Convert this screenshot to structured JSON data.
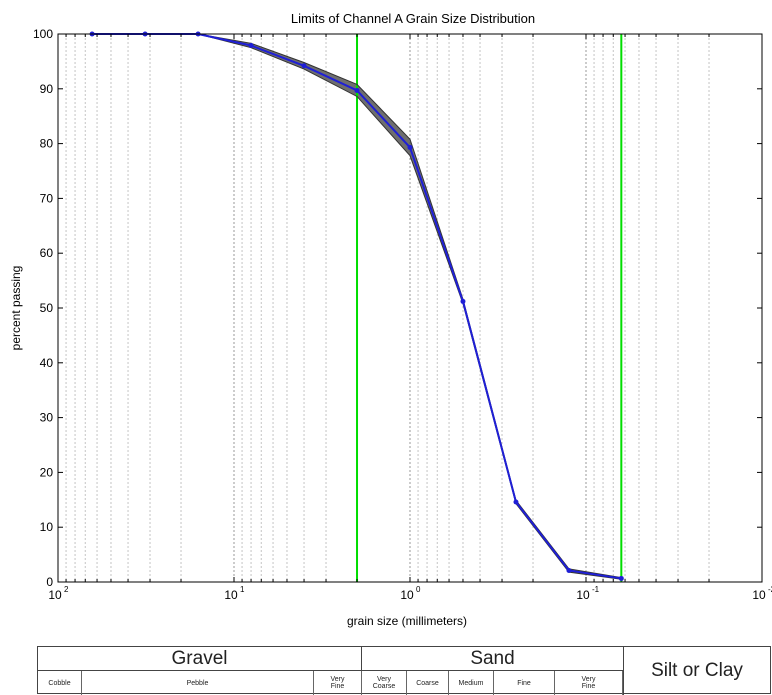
{
  "chart_data": {
    "type": "line",
    "title": "Limits of Channel A Grain Size Distribution",
    "xlabel": "grain size (millimeters)",
    "ylabel": "percent passing",
    "x_scale": "log",
    "x_reversed": true,
    "xlim": [
      100,
      0.01
    ],
    "ylim": [
      0,
      100
    ],
    "x_ticks": [
      {
        "value": 100,
        "base": "10",
        "exp": "2"
      },
      {
        "value": 10,
        "base": "10",
        "exp": "1"
      },
      {
        "value": 1,
        "base": "10",
        "exp": "0"
      },
      {
        "value": 0.1,
        "base": "10",
        "exp": "-1"
      },
      {
        "value": 0.01,
        "base": "10",
        "exp": "-2"
      }
    ],
    "y_ticks": [
      "0",
      "10",
      "20",
      "30",
      "40",
      "50",
      "60",
      "70",
      "80",
      "90",
      "100"
    ],
    "grid": "vertical-minor-dotted",
    "series": [
      {
        "role": "upper",
        "color": "#333333",
        "x": [
          64,
          32,
          16,
          8,
          4,
          2,
          1,
          0.5,
          0.25,
          0.125,
          0.063
        ],
        "y": [
          100,
          100,
          100,
          98.3,
          94.8,
          90.8,
          80.8,
          51.6,
          14.9,
          2.4,
          0.8
        ]
      },
      {
        "role": "lower",
        "color": "#333333",
        "x": [
          64,
          32,
          16,
          8,
          4,
          2,
          1,
          0.5,
          0.25,
          0.125,
          0.063
        ],
        "y": [
          100,
          100,
          100,
          97.5,
          93.6,
          88.6,
          77.8,
          50.8,
          14.3,
          1.8,
          0.5
        ]
      },
      {
        "role": "mean",
        "color": "#1f1fd6",
        "x": [
          64,
          32,
          16,
          8,
          4,
          2,
          1,
          0.5,
          0.25,
          0.125,
          0.063
        ],
        "y": [
          100,
          100,
          100,
          97.9,
          94.2,
          89.7,
          79.3,
          51.2,
          14.6,
          2.1,
          0.65
        ]
      }
    ],
    "vertical_lines": [
      {
        "x": 2,
        "color": "#00dd00"
      },
      {
        "x": 0.063,
        "color": "#00dd00"
      }
    ],
    "band_color": "#555555"
  },
  "classification": {
    "gravel_label": "Gravel",
    "sand_label": "Sand",
    "silt_clay_label": "Silt or Clay",
    "subclasses": [
      "Cobble",
      "Pebble",
      "Very Fine",
      "Very Coarse",
      "Coarse",
      "Medium",
      "Fine",
      "Very Fine"
    ]
  }
}
